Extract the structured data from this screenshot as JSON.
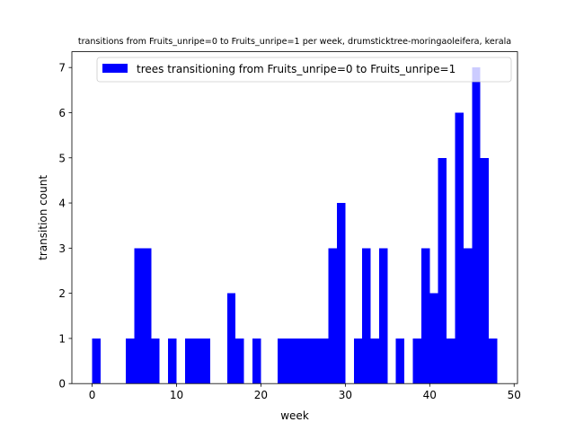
{
  "chart_data": {
    "type": "bar",
    "title": "transitions from Fruits_unripe=0 to Fruits_unripe=1 per week, drumsticktree-moringaoleifera, kerala",
    "xlabel": "week",
    "ylabel": "transition count",
    "xlim": [
      -2.4,
      50.4
    ],
    "ylim": [
      0,
      7.35
    ],
    "x_ticks": [
      "0",
      "10",
      "20",
      "30",
      "40",
      "50"
    ],
    "y_ticks": [
      "0",
      "1",
      "2",
      "3",
      "4",
      "5",
      "6",
      "7"
    ],
    "bar_width": 1,
    "grid": false,
    "legend_position": "top-right",
    "series": [
      {
        "name": "trees transitioning from Fruits_unripe=0 to Fruits_unripe=1",
        "color": "#0000ff",
        "x": [
          0,
          4,
          5,
          6,
          7,
          9,
          11,
          12,
          13,
          16,
          17,
          19,
          22,
          23,
          24,
          25,
          26,
          27,
          28,
          29,
          31,
          32,
          33,
          34,
          36,
          38,
          39,
          40,
          41,
          42,
          43,
          44,
          45,
          46,
          47
        ],
        "values": [
          1,
          1,
          3,
          3,
          1,
          1,
          1,
          1,
          1,
          2,
          1,
          1,
          1,
          1,
          1,
          1,
          1,
          1,
          3,
          4,
          1,
          3,
          1,
          3,
          1,
          1,
          3,
          2,
          5,
          1,
          6,
          3,
          7,
          5,
          1
        ]
      }
    ]
  }
}
